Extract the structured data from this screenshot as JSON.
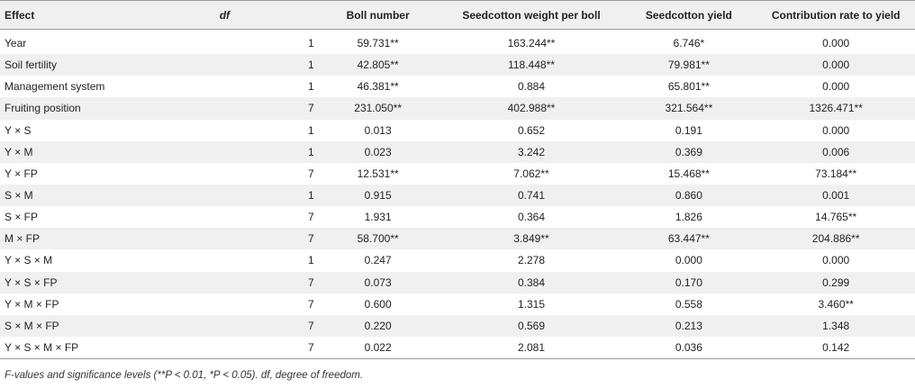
{
  "table": {
    "headers": [
      "Effect",
      "df",
      "Boll number",
      "Seedcotton weight per boll",
      "Seedcotton yield",
      "Contribution rate to yield"
    ],
    "rows": [
      [
        "Year",
        "1",
        "59.731**",
        "163.244**",
        "6.746*",
        "0.000"
      ],
      [
        "Soil fertility",
        "1",
        "42.805**",
        "118.448**",
        "79.981**",
        "0.000"
      ],
      [
        "Management system",
        "1",
        "46.381**",
        "0.884",
        "65.801**",
        "0.000"
      ],
      [
        "Fruiting position",
        "7",
        "231.050**",
        "402.988**",
        "321.564**",
        "1326.471**"
      ],
      [
        "Y × S",
        "1",
        "0.013",
        "0.652",
        "0.191",
        "0.000"
      ],
      [
        "Y × M",
        "1",
        "0.023",
        "3.242",
        "0.369",
        "0.006"
      ],
      [
        "Y × FP",
        "7",
        "12.531**",
        "7.062**",
        "15.468**",
        "73.184**"
      ],
      [
        "S × M",
        "1",
        "0.915",
        "0.741",
        "0.860",
        "0.001"
      ],
      [
        "S × FP",
        "7",
        "1.931",
        "0.364",
        "1.826",
        "14.765**"
      ],
      [
        "M × FP",
        "7",
        "58.700**",
        "3.849**",
        "63.447**",
        "204.886**"
      ],
      [
        "Y × S × M",
        "1",
        "0.247",
        "2.278",
        "0.000",
        "0.000"
      ],
      [
        "Y × S × FP",
        "7",
        "0.073",
        "0.384",
        "0.170",
        "0.299"
      ],
      [
        "Y × M × FP",
        "7",
        "0.600",
        "1.315",
        "0.558",
        "3.460**"
      ],
      [
        "S × M × FP",
        "7",
        "0.220",
        "0.569",
        "0.213",
        "1.348"
      ],
      [
        "Y × S × M × FP",
        "7",
        "0.022",
        "2.081",
        "0.036",
        "0.142"
      ]
    ]
  },
  "footnote": "F-values and significance levels (**P < 0.01, *P < 0.05). df, degree of freedom.",
  "colors": {
    "header_bg": "#f0f0f0",
    "stripe_bg": "#f0f0f0",
    "rule": "#999999"
  }
}
